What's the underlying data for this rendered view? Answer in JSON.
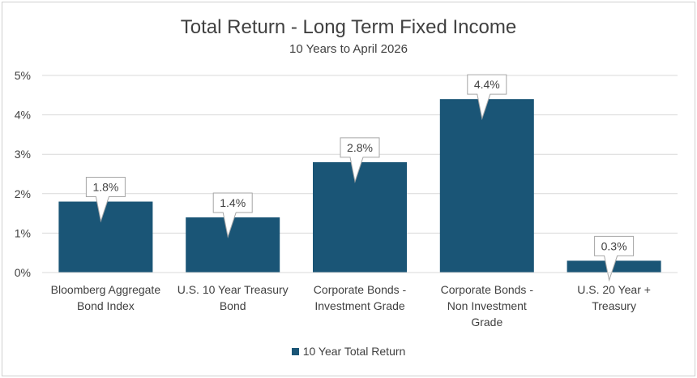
{
  "colors": {
    "bar": "#1a5576",
    "grid": "#d9d9d9",
    "text": "#404040"
  },
  "chart_data": {
    "type": "bar",
    "title": "Total Return - Long Term Fixed Income",
    "subtitle": "10 Years to April 2026",
    "categories": [
      [
        "Bloomberg Aggregate",
        "Bond Index"
      ],
      [
        "U.S. 10 Year Treasury",
        "Bond"
      ],
      [
        "Corporate Bonds -",
        "Investment Grade"
      ],
      [
        "Corporate Bonds -",
        "Non Investment",
        "Grade"
      ],
      [
        "U.S. 20 Year +",
        "Treasury"
      ]
    ],
    "series": [
      {
        "name": "10 Year Total Return",
        "values": [
          1.8,
          1.4,
          2.8,
          4.4,
          0.3
        ]
      }
    ],
    "data_labels": [
      "1.8%",
      "1.4%",
      "2.8%",
      "4.4%",
      "0.3%"
    ],
    "ylim": [
      0,
      5
    ],
    "yticks": [
      "0%",
      "1%",
      "2%",
      "3%",
      "4%",
      "5%"
    ],
    "grid": true,
    "legend_position": "bottom"
  }
}
